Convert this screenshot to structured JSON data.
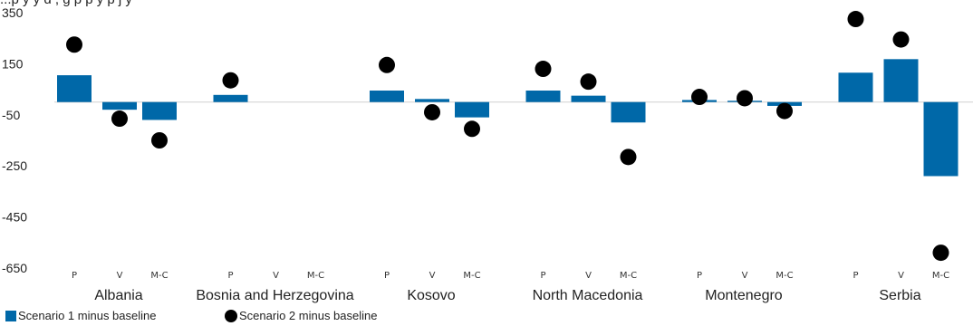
{
  "title_partial": "...p     y    y       d                   ,  g                    p  p                  y                        p  j          y",
  "chart_data": {
    "type": "bar",
    "groups": [
      "Albania",
      "Bosnia and Herzegovina",
      "Kosovo",
      "North Macedonia",
      "Montenegro",
      "Serbia"
    ],
    "subcategories": [
      "P",
      "V",
      "M-C"
    ],
    "ylim": [
      -650,
      350
    ],
    "yticks": [
      350,
      150,
      -50,
      -250,
      -450,
      -650
    ],
    "series": [
      {
        "name": "Scenario 1 minus baseline",
        "kind": "bar",
        "color": "#0068a8",
        "values": [
          [
            105,
            -30,
            -70
          ],
          [
            28,
            null,
            null
          ],
          [
            45,
            12,
            -60
          ],
          [
            45,
            25,
            -80
          ],
          [
            8,
            5,
            -15
          ],
          [
            115,
            168,
            -290
          ]
        ]
      },
      {
        "name": "Scenario 2 minus baseline",
        "kind": "dot",
        "color": "#000000",
        "values": [
          [
            225,
            -65,
            -150
          ],
          [
            85,
            null,
            null
          ],
          [
            145,
            -40,
            -105
          ],
          [
            130,
            80,
            -215
          ],
          [
            20,
            15,
            -35
          ],
          [
            325,
            245,
            -590
          ]
        ]
      }
    ]
  }
}
